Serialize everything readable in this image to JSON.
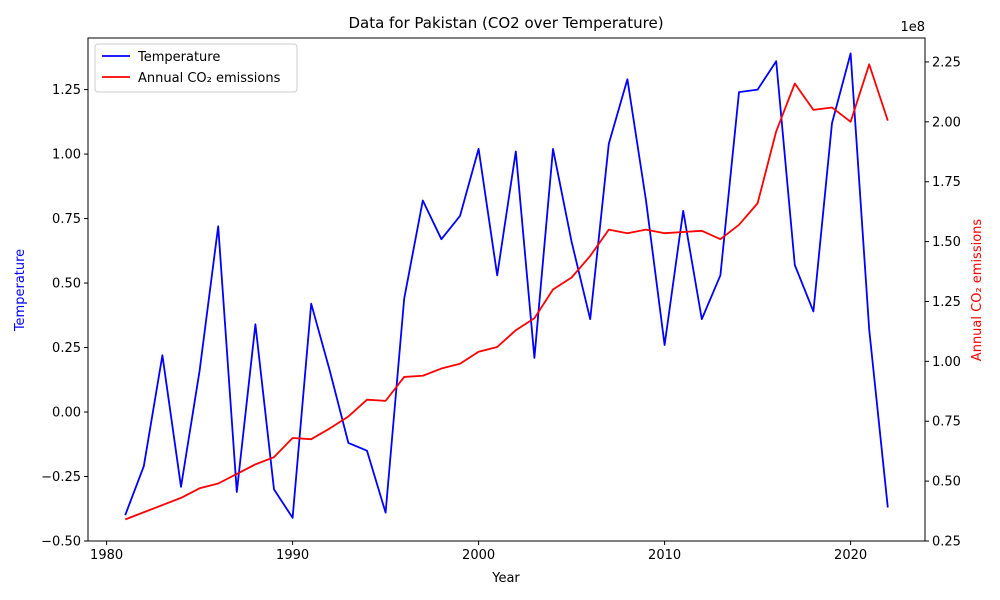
{
  "chart_data": {
    "type": "line",
    "title": "Data for Pakistan (CO2 over Temperature)",
    "xlabel": "Year",
    "ylabel_left": "Temperature",
    "ylabel_right": "Annual CO₂ emissions",
    "right_axis_multiplier": "1e8",
    "xlim": [
      1979,
      2024
    ],
    "ylim_left": [
      -0.5,
      1.45
    ],
    "ylim_right": [
      25000000,
      235000000
    ],
    "x_ticks": [
      1980,
      1990,
      2000,
      2010,
      2020
    ],
    "y_ticks_left": [
      -0.5,
      -0.25,
      0.0,
      0.25,
      0.5,
      0.75,
      1.0,
      1.25
    ],
    "y_ticks_right": [
      25000000,
      50000000,
      75000000,
      100000000,
      125000000,
      150000000,
      175000000,
      200000000,
      225000000
    ],
    "y_tick_labels_left": [
      "−0.50",
      "−0.25",
      "0.00",
      "0.25",
      "0.50",
      "0.75",
      "1.00",
      "1.25"
    ],
    "y_tick_labels_right": [
      "0.25",
      "0.50",
      "0.75",
      "1.00",
      "1.25",
      "1.50",
      "1.75",
      "2.00",
      "2.25"
    ],
    "grid": false,
    "legend_position": "top-left",
    "x": [
      1981,
      1982,
      1983,
      1984,
      1985,
      1986,
      1987,
      1988,
      1989,
      1990,
      1991,
      1992,
      1993,
      1994,
      1995,
      1996,
      1997,
      1998,
      1999,
      2000,
      2001,
      2002,
      2003,
      2004,
      2005,
      2006,
      2007,
      2008,
      2009,
      2010,
      2011,
      2012,
      2013,
      2014,
      2015,
      2016,
      2017,
      2018,
      2019,
      2020,
      2021,
      2022
    ],
    "series": [
      {
        "name": "Temperature",
        "axis": "left",
        "color": "#0000ff",
        "values": [
          -0.4,
          -0.21,
          0.22,
          -0.29,
          0.16,
          0.72,
          -0.31,
          0.34,
          -0.3,
          -0.41,
          0.42,
          0.16,
          -0.12,
          -0.15,
          -0.39,
          0.44,
          0.82,
          0.67,
          0.76,
          1.02,
          0.53,
          1.01,
          0.21,
          1.02,
          0.66,
          0.36,
          1.04,
          1.29,
          0.82,
          0.26,
          0.78,
          0.36,
          0.53,
          1.24,
          1.25,
          1.36,
          0.57,
          0.39,
          1.12,
          1.39,
          0.32,
          -0.37
        ]
      },
      {
        "name": "Annual CO₂ emissions",
        "axis": "right",
        "color": "#ff0000",
        "values": [
          34000000,
          37000000,
          40000000,
          43000000,
          47000000,
          49000000,
          53000000,
          57000000,
          60000000,
          68000000,
          67500000,
          72000000,
          77000000,
          84000000,
          83500000,
          93500000,
          94000000,
          97000000,
          99000000,
          104000000,
          106000000,
          113000000,
          118000000,
          130000000,
          135000000,
          144000000,
          155000000,
          153500000,
          155000000,
          153500000,
          154000000,
          154500000,
          151000000,
          157000000,
          166000000,
          196000000,
          216000000,
          205000000,
          206000000,
          200000000,
          224000000,
          200500000
        ]
      }
    ]
  },
  "colors": {
    "temperature": "#0000ff",
    "co2": "#ff0000",
    "axis": "#000000",
    "legend_border": "#cccccc"
  }
}
